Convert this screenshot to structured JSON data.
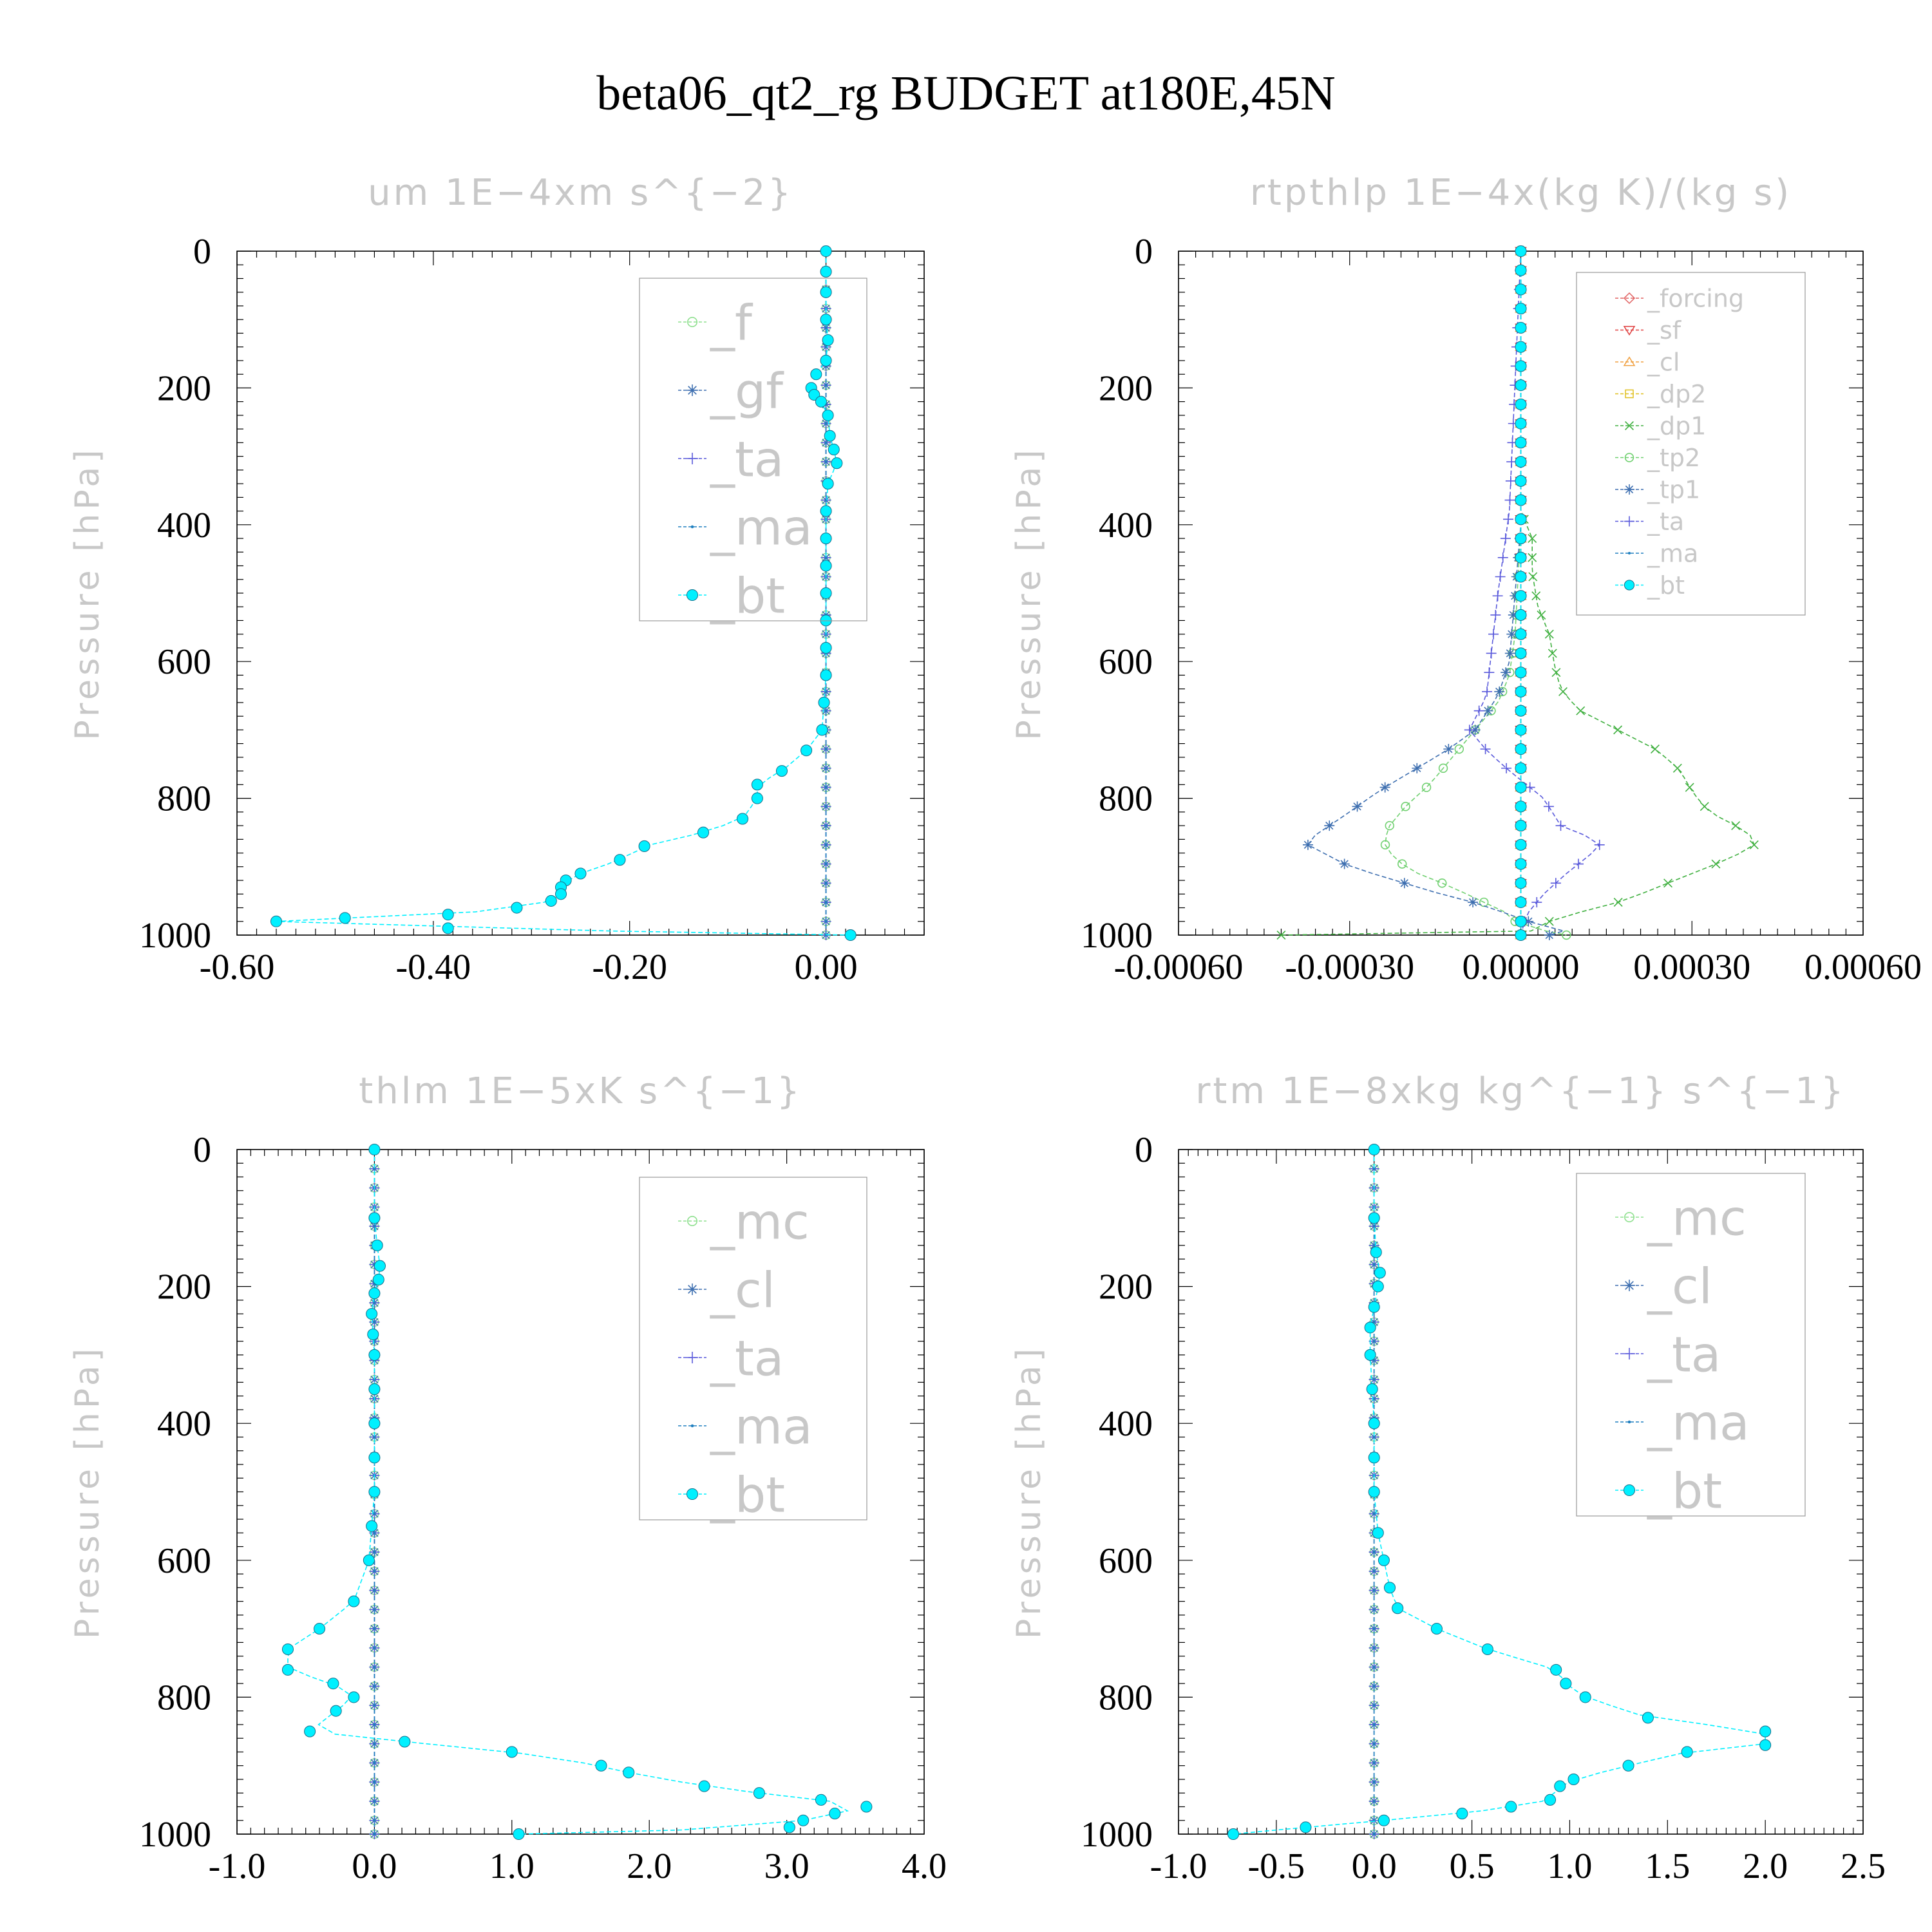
{
  "title": "beta06_qt2_rg  BUDGET at180E,45N",
  "chart_data": [
    {
      "type": "line",
      "title": "um  1E−4xm s^{−2}",
      "ylabel": "Pressure [hPa]",
      "xlabel": "",
      "xlim": [
        -0.6,
        0.1
      ],
      "xticks": [
        -0.6,
        -0.4,
        -0.2,
        0.0
      ],
      "xtick_labels": [
        "-0.60",
        "-0.40",
        "-0.20",
        "0.00"
      ],
      "ylim": [
        0,
        1000
      ],
      "yticks": [
        0,
        200,
        400,
        600,
        800,
        1000
      ],
      "ytick_labels": [
        "0",
        "200",
        "400",
        "600",
        "800",
        "1000"
      ],
      "y_inverted": true,
      "legend_position": "top-right",
      "legend_size": "large",
      "series": [
        {
          "name": "_f",
          "color": "#8fe08f",
          "marker": "circle-open",
          "x": [
            0.0,
            0.0
          ],
          "y": [
            0,
            1000
          ]
        },
        {
          "name": "_gf",
          "color": "#3e6fb0",
          "marker": "star",
          "x": [
            0.0,
            0.0
          ],
          "y": [
            0,
            1000
          ]
        },
        {
          "name": "_ta",
          "color": "#5a5adb",
          "marker": "plus",
          "x": [
            0.0,
            0.0
          ],
          "y": [
            0,
            1000
          ]
        },
        {
          "name": "_ma",
          "color": "#1f7fbf",
          "marker": "dot",
          "x": [
            0.0,
            0.0
          ],
          "y": [
            0,
            1000
          ]
        },
        {
          "name": "_bt",
          "color": "#00f0ff",
          "marker": "filled-circle",
          "x": [
            0.0,
            0.0,
            0.0,
            0.0,
            0.002,
            0.0,
            -0.01,
            -0.015,
            -0.012,
            -0.005,
            0.002,
            0.004,
            0.008,
            0.011,
            0.002,
            0.0,
            0.0,
            0.0,
            0.0,
            0.0,
            0.0,
            0.0,
            -0.002,
            -0.004,
            -0.02,
            -0.045,
            -0.07,
            -0.07,
            -0.085,
            -0.125,
            -0.185,
            -0.21,
            -0.25,
            -0.265,
            -0.27,
            -0.27,
            -0.28,
            -0.315,
            -0.385,
            -0.49,
            -0.56,
            -0.385,
            0.025
          ],
          "y": [
            0,
            30,
            60,
            100,
            130,
            160,
            180,
            200,
            210,
            220,
            240,
            270,
            290,
            310,
            340,
            380,
            420,
            460,
            500,
            540,
            580,
            620,
            660,
            700,
            730,
            760,
            780,
            800,
            830,
            850,
            870,
            890,
            910,
            920,
            930,
            940,
            950,
            960,
            970,
            975,
            980,
            990,
            1000
          ]
        }
      ]
    },
    {
      "type": "line",
      "title": "rtpthlp  1E−4x(kg K)/(kg s)",
      "ylabel": "Pressure [hPa]",
      "xlabel": "",
      "xlim": [
        -0.0006,
        0.0006
      ],
      "xticks": [
        -0.0006,
        -0.0003,
        0.0,
        0.0003,
        0.0006
      ],
      "xtick_labels": [
        "-0.00060",
        "-0.00030",
        "0.00000",
        "0.00030",
        "0.00060"
      ],
      "ylim": [
        0,
        1000
      ],
      "yticks": [
        0,
        200,
        400,
        600,
        800,
        1000
      ],
      "ytick_labels": [
        "0",
        "200",
        "400",
        "600",
        "800",
        "1000"
      ],
      "y_inverted": true,
      "legend_position": "top-right",
      "legend_size": "small",
      "series": [
        {
          "name": "_forcing",
          "color": "#e06060",
          "marker": "diamond-open",
          "x": [
            0,
            0
          ],
          "y": [
            0,
            1000
          ]
        },
        {
          "name": "_sf",
          "color": "#e04040",
          "marker": "triangle-down-open",
          "x": [
            0,
            0
          ],
          "y": [
            0,
            1000
          ]
        },
        {
          "name": "_cl",
          "color": "#f0a040",
          "marker": "triangle-up-open",
          "x": [
            0,
            0
          ],
          "y": [
            0,
            1000
          ]
        },
        {
          "name": "_dp2",
          "color": "#e0c020",
          "marker": "square-open",
          "x": [
            0,
            0
          ],
          "y": [
            0,
            1000
          ]
        },
        {
          "name": "_dp1",
          "color": "#40b040",
          "marker": "cross",
          "x": [
            0,
            0,
            0,
            2e-05,
            2e-05,
            3e-05,
            5e-05,
            6e-05,
            7e-05,
            0.0001,
            0.00017,
            0.00024,
            0.00028,
            0.0003,
            0.00033,
            0.0004,
            0.00041,
            0.00036,
            0.0003,
            0.00024,
            0.00018,
            0.00011,
            5e-05,
            1e-05,
            2e-05,
            -0.00042
          ],
          "y": [
            0,
            200,
            380,
            420,
            470,
            520,
            560,
            610,
            640,
            670,
            700,
            730,
            760,
            790,
            820,
            850,
            870,
            890,
            910,
            930,
            950,
            965,
            980,
            990,
            995,
            1000
          ]
        },
        {
          "name": "_tp2",
          "color": "#70d070",
          "marker": "circle-open",
          "x": [
            0,
            0,
            -1e-05,
            -2e-05,
            -4e-05,
            -7e-05,
            -0.0001,
            -0.00013,
            -0.00016,
            -0.0002,
            -0.00023,
            -0.00024,
            -0.00022,
            -0.00018,
            -0.00012,
            -7e-05,
            -3e-05,
            -1e-05,
            2e-05,
            8e-05
          ],
          "y": [
            0,
            400,
            560,
            620,
            660,
            690,
            720,
            750,
            780,
            810,
            840,
            865,
            890,
            910,
            930,
            950,
            965,
            980,
            990,
            1000
          ]
        },
        {
          "name": "_tp1",
          "color": "#3e6fb0",
          "marker": "star",
          "x": [
            0,
            0,
            -2e-05,
            -4e-05,
            -8e-05,
            -0.00013,
            -0.00019,
            -0.00025,
            -0.0003,
            -0.00038,
            -0.0003,
            -0.00022,
            -0.00014,
            -7e-05,
            -2e-05,
            3e-05,
            8e-05,
            5e-05
          ],
          "y": [
            0,
            400,
            600,
            650,
            700,
            730,
            760,
            790,
            820,
            865,
            900,
            920,
            940,
            955,
            970,
            985,
            995,
            1000
          ]
        },
        {
          "name": "_ta",
          "color": "#5a5adb",
          "marker": "plus",
          "x": [
            0,
            -2e-05,
            -4e-05,
            -6e-05,
            -9e-05,
            -6e-05,
            -2e-05,
            4e-05,
            7e-05,
            0.00013,
            0.00014,
            0.00011,
            8e-05,
            4e-05,
            1e-05,
            0.0
          ],
          "y": [
            0,
            380,
            500,
            650,
            700,
            730,
            760,
            800,
            840,
            860,
            870,
            890,
            910,
            940,
            970,
            1000
          ]
        },
        {
          "name": "_ma",
          "color": "#1f7fbf",
          "marker": "dot",
          "x": [
            0,
            0
          ],
          "y": [
            0,
            1000
          ]
        },
        {
          "name": "_bt",
          "color": "#00f0ff",
          "marker": "filled-circle",
          "x": [
            0,
            0
          ],
          "y": [
            0,
            1000
          ]
        }
      ]
    },
    {
      "type": "line",
      "title": "thlm  1E−5xK s^{−1}",
      "ylabel": "Pressure [hPa]",
      "xlabel": "",
      "xlim": [
        -1.0,
        4.0
      ],
      "xticks": [
        -1.0,
        0.0,
        1.0,
        2.0,
        3.0,
        4.0
      ],
      "xtick_labels": [
        "-1.0",
        "0.0",
        "1.0",
        "2.0",
        "3.0",
        "4.0"
      ],
      "ylim": [
        0,
        1000
      ],
      "yticks": [
        0,
        200,
        400,
        600,
        800,
        1000
      ],
      "ytick_labels": [
        "0",
        "200",
        "400",
        "600",
        "800",
        "1000"
      ],
      "y_inverted": true,
      "legend_position": "top-right",
      "legend_size": "large",
      "series": [
        {
          "name": "_mc",
          "color": "#8fe08f",
          "marker": "circle-open",
          "x": [
            0.0,
            0.0
          ],
          "y": [
            0,
            1000
          ]
        },
        {
          "name": "_cl",
          "color": "#3e6fb0",
          "marker": "star",
          "x": [
            0.0,
            0.0
          ],
          "y": [
            0,
            1000
          ]
        },
        {
          "name": "_ta",
          "color": "#5a5adb",
          "marker": "plus",
          "x": [
            0.0,
            0.0
          ],
          "y": [
            0,
            1000
          ]
        },
        {
          "name": "_ma",
          "color": "#1f7fbf",
          "marker": "dot",
          "x": [
            0.0,
            0.0
          ],
          "y": [
            0,
            1000
          ]
        },
        {
          "name": "_bt",
          "color": "#00f0ff",
          "marker": "filled-circle",
          "x": [
            0.0,
            0.0,
            0.02,
            0.04,
            0.03,
            0.0,
            -0.02,
            -0.01,
            0.0,
            0.0,
            0.0,
            0.0,
            0.0,
            -0.02,
            -0.04,
            -0.15,
            -0.4,
            -0.63,
            -0.63,
            -0.3,
            -0.15,
            -0.28,
            -0.47,
            0.22,
            1.0,
            1.65,
            1.85,
            2.4,
            2.8,
            3.25,
            3.58,
            3.35,
            3.12,
            3.02,
            1.05
          ],
          "y": [
            0,
            100,
            140,
            170,
            190,
            210,
            240,
            270,
            300,
            350,
            400,
            450,
            500,
            550,
            600,
            660,
            700,
            730,
            760,
            780,
            800,
            820,
            850,
            865,
            880,
            900,
            910,
            930,
            940,
            950,
            960,
            970,
            980,
            990,
            1000
          ]
        }
      ]
    },
    {
      "type": "line",
      "title": "rtm  1E−8xkg kg^{−1} s^{−1}",
      "ylabel": "Pressure [hPa]",
      "xlabel": "",
      "xlim": [
        -1.0,
        2.5
      ],
      "xticks": [
        -1.0,
        -0.5,
        0.0,
        0.5,
        1.0,
        1.5,
        2.0,
        2.5
      ],
      "xtick_labels": [
        "-1.0",
        "-0.5",
        "0.0",
        "0.5",
        "1.0",
        "1.5",
        "2.0",
        "2.5"
      ],
      "ylim": [
        0,
        1000
      ],
      "yticks": [
        0,
        200,
        400,
        600,
        800,
        1000
      ],
      "ytick_labels": [
        "0",
        "200",
        "400",
        "600",
        "800",
        "1000"
      ],
      "y_inverted": true,
      "legend_position": "top-right",
      "legend_size": "large",
      "series": [
        {
          "name": "_mc",
          "color": "#8fe08f",
          "marker": "circle-open",
          "x": [
            0.0,
            0.0
          ],
          "y": [
            0,
            1000
          ]
        },
        {
          "name": "_cl",
          "color": "#3e6fb0",
          "marker": "star",
          "x": [
            0.0,
            0.0
          ],
          "y": [
            0,
            1000
          ]
        },
        {
          "name": "_ta",
          "color": "#5a5adb",
          "marker": "plus",
          "x": [
            0.0,
            0.0
          ],
          "y": [
            0,
            1000
          ]
        },
        {
          "name": "_ma",
          "color": "#1f7fbf",
          "marker": "dot",
          "x": [
            0.0,
            0.0
          ],
          "y": [
            0,
            1000
          ]
        },
        {
          "name": "_bt",
          "color": "#00f0ff",
          "marker": "filled-circle",
          "x": [
            0.0,
            0.0,
            0.01,
            0.03,
            0.02,
            0.0,
            -0.02,
            -0.02,
            -0.01,
            0.0,
            0.0,
            0.0,
            0.02,
            0.05,
            0.08,
            0.12,
            0.32,
            0.58,
            0.93,
            0.98,
            1.08,
            1.4,
            2.0,
            2.0,
            1.6,
            1.3,
            1.02,
            0.95,
            0.9,
            0.7,
            0.45,
            0.05,
            -0.35,
            -0.72
          ],
          "y": [
            0,
            100,
            150,
            180,
            200,
            230,
            260,
            300,
            350,
            400,
            450,
            500,
            560,
            600,
            640,
            670,
            700,
            730,
            760,
            780,
            800,
            830,
            850,
            870,
            880,
            900,
            920,
            930,
            950,
            960,
            970,
            980,
            990,
            1000
          ]
        }
      ]
    }
  ]
}
